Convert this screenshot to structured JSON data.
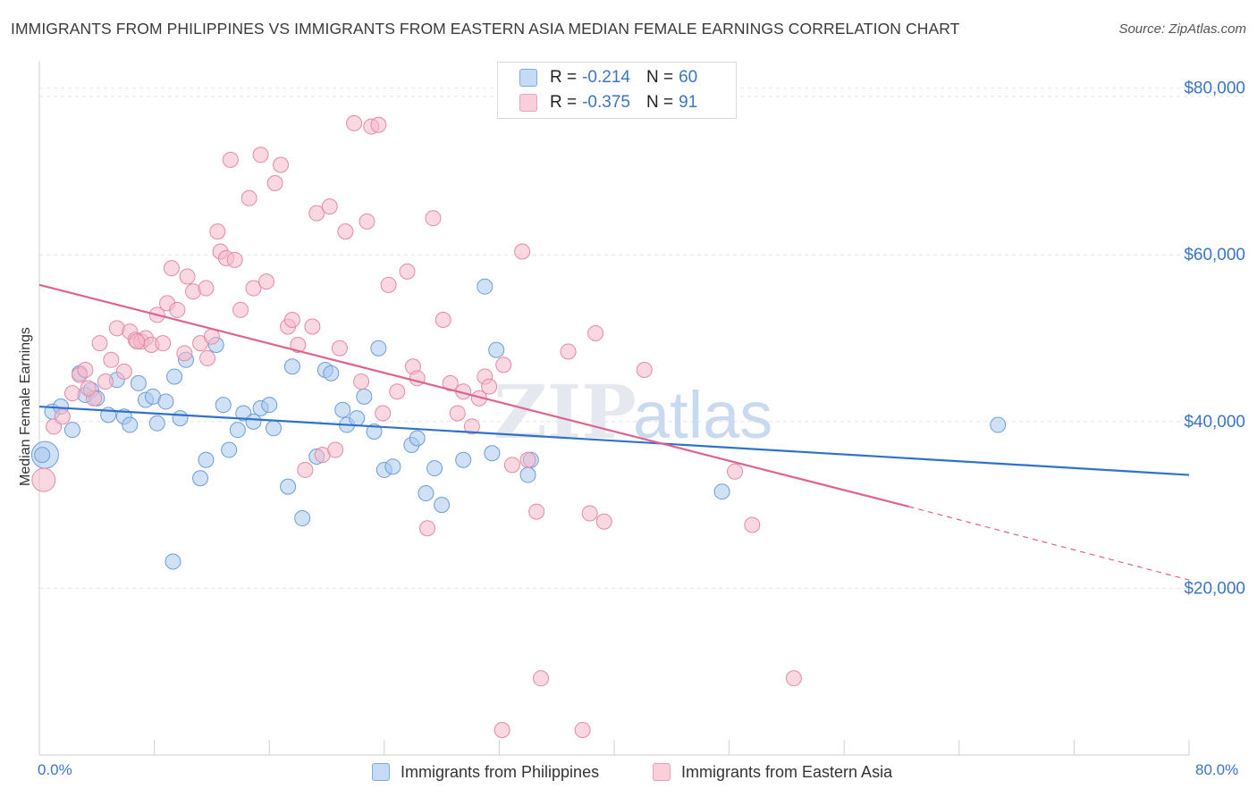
{
  "title": "IMMIGRANTS FROM PHILIPPINES VS IMMIGRANTS FROM EASTERN ASIA MEDIAN FEMALE EARNINGS CORRELATION CHART",
  "source": "Source: ZipAtlas.com",
  "watermark": {
    "zip": "ZIP",
    "atlas": "atlas"
  },
  "legend": {
    "r_label": "R =",
    "n_label": "N =",
    "rows": [
      {
        "r": "-0.214",
        "n": "60",
        "color": "#a9c8ef"
      },
      {
        "r": "-0.375",
        "n": "91",
        "color": "#f5b8cb"
      }
    ]
  },
  "chart_data": {
    "type": "scatter",
    "title": "IMMIGRANTS FROM PHILIPPINES VS IMMIGRANTS FROM EASTERN ASIA MEDIAN FEMALE EARNINGS CORRELATION CHART",
    "xlabel": "",
    "ylabel": "Median Female Earnings",
    "xlim": [
      0,
      80
    ],
    "ylim": [
      0,
      82000
    ],
    "x_tick_labels": [
      "0.0%",
      "80.0%"
    ],
    "y_ticks": [
      20000,
      40000,
      60000,
      80000
    ],
    "y_tick_labels": [
      "$20,000",
      "$40,000",
      "$60,000",
      "$80,000"
    ],
    "grid": true,
    "series": [
      {
        "name": "Immigrants from Philippines",
        "color": "#a9c8ef",
        "stroke": "#6a9ed8",
        "trend": {
          "x0": 0,
          "y0": 41800,
          "x1": 80,
          "y1": 33600,
          "color": "#2f72cc"
        },
        "points": [
          [
            0.4,
            36000
          ],
          [
            0.9,
            41200
          ],
          [
            1.5,
            41800
          ],
          [
            2.3,
            39000
          ],
          [
            2.8,
            45800
          ],
          [
            3.2,
            43200
          ],
          [
            3.6,
            43800
          ],
          [
            4.0,
            42800
          ],
          [
            4.8,
            40800
          ],
          [
            5.4,
            45000
          ],
          [
            5.9,
            40600
          ],
          [
            6.3,
            39600
          ],
          [
            6.9,
            44600
          ],
          [
            7.4,
            42600
          ],
          [
            7.9,
            43000
          ],
          [
            8.2,
            39800
          ],
          [
            8.8,
            42400
          ],
          [
            9.4,
            45400
          ],
          [
            9.8,
            40400
          ],
          [
            10.2,
            47400
          ],
          [
            11.2,
            33200
          ],
          [
            11.6,
            35400
          ],
          [
            12.3,
            49200
          ],
          [
            12.8,
            42000
          ],
          [
            13.2,
            36600
          ],
          [
            13.8,
            39000
          ],
          [
            14.2,
            41000
          ],
          [
            14.9,
            40000
          ],
          [
            15.4,
            41600
          ],
          [
            16.0,
            42000
          ],
          [
            16.3,
            39200
          ],
          [
            17.3,
            32200
          ],
          [
            17.6,
            46600
          ],
          [
            18.3,
            28400
          ],
          [
            19.3,
            35800
          ],
          [
            19.9,
            46200
          ],
          [
            20.3,
            45800
          ],
          [
            21.1,
            41400
          ],
          [
            21.4,
            39600
          ],
          [
            22.1,
            40400
          ],
          [
            22.6,
            43000
          ],
          [
            23.3,
            38800
          ],
          [
            23.6,
            48800
          ],
          [
            24.0,
            34200
          ],
          [
            24.6,
            34600
          ],
          [
            25.9,
            37200
          ],
          [
            26.3,
            38000
          ],
          [
            26.9,
            31400
          ],
          [
            27.5,
            34400
          ],
          [
            28.0,
            30000
          ],
          [
            29.5,
            35400
          ],
          [
            31.0,
            56200
          ],
          [
            31.5,
            36200
          ],
          [
            31.8,
            48600
          ],
          [
            34.0,
            33600
          ],
          [
            34.2,
            35400
          ],
          [
            9.3,
            23200
          ],
          [
            47.5,
            31600
          ],
          [
            66.7,
            39600
          ],
          [
            0.2,
            36000
          ]
        ],
        "sizes_note": "the point at x=0.4 is drawn larger"
      },
      {
        "name": "Immigrants from Eastern Asia",
        "color": "#f5b8cb",
        "stroke": "#e48aa6",
        "trend": {
          "x0": 0,
          "y0": 56400,
          "x1": 60.5,
          "y1": 29800,
          "dash_x1": 80,
          "dash_y1": 21000,
          "color": "#e0628f"
        },
        "points": [
          [
            0.3,
            33000
          ],
          [
            1.0,
            39400
          ],
          [
            1.6,
            40600
          ],
          [
            2.3,
            43400
          ],
          [
            2.8,
            45600
          ],
          [
            3.2,
            46200
          ],
          [
            3.8,
            42800
          ],
          [
            4.2,
            49400
          ],
          [
            4.6,
            44800
          ],
          [
            5.0,
            47400
          ],
          [
            5.4,
            51200
          ],
          [
            5.9,
            46000
          ],
          [
            6.3,
            50800
          ],
          [
            6.7,
            49800
          ],
          [
            7.1,
            49600
          ],
          [
            7.4,
            50000
          ],
          [
            7.8,
            49200
          ],
          [
            8.2,
            52800
          ],
          [
            8.6,
            49400
          ],
          [
            8.9,
            54200
          ],
          [
            9.2,
            58400
          ],
          [
            9.6,
            53400
          ],
          [
            10.1,
            48200
          ],
          [
            10.3,
            57400
          ],
          [
            10.7,
            55600
          ],
          [
            11.2,
            49400
          ],
          [
            11.6,
            56000
          ],
          [
            12.0,
            50200
          ],
          [
            12.4,
            62800
          ],
          [
            12.6,
            60400
          ],
          [
            13.0,
            59600
          ],
          [
            13.3,
            71400
          ],
          [
            13.6,
            59400
          ],
          [
            14.0,
            53400
          ],
          [
            14.6,
            66800
          ],
          [
            14.9,
            56000
          ],
          [
            15.4,
            72000
          ],
          [
            15.8,
            56800
          ],
          [
            16.4,
            68600
          ],
          [
            16.8,
            70800
          ],
          [
            17.3,
            51400
          ],
          [
            17.6,
            52200
          ],
          [
            18.0,
            49200
          ],
          [
            18.5,
            34200
          ],
          [
            19.0,
            51400
          ],
          [
            19.3,
            65000
          ],
          [
            19.7,
            36000
          ],
          [
            20.2,
            65800
          ],
          [
            20.6,
            36600
          ],
          [
            20.9,
            48800
          ],
          [
            21.3,
            62800
          ],
          [
            21.9,
            75800
          ],
          [
            22.4,
            44800
          ],
          [
            22.8,
            64000
          ],
          [
            23.1,
            75400
          ],
          [
            23.6,
            75600
          ],
          [
            23.9,
            41000
          ],
          [
            24.3,
            56400
          ],
          [
            24.9,
            43600
          ],
          [
            25.6,
            58000
          ],
          [
            26.0,
            46600
          ],
          [
            26.3,
            45200
          ],
          [
            27.0,
            27200
          ],
          [
            27.4,
            64400
          ],
          [
            28.1,
            52200
          ],
          [
            28.6,
            44600
          ],
          [
            29.1,
            41000
          ],
          [
            29.5,
            43600
          ],
          [
            30.1,
            39400
          ],
          [
            30.6,
            42800
          ],
          [
            31.0,
            45400
          ],
          [
            31.3,
            44200
          ],
          [
            32.3,
            46800
          ],
          [
            32.9,
            34800
          ],
          [
            33.6,
            60400
          ],
          [
            34.0,
            35400
          ],
          [
            34.6,
            29200
          ],
          [
            36.8,
            48400
          ],
          [
            38.3,
            29000
          ],
          [
            38.7,
            50600
          ],
          [
            39.3,
            28000
          ],
          [
            42.1,
            46200
          ],
          [
            48.4,
            34000
          ],
          [
            49.6,
            27600
          ],
          [
            34.9,
            9200
          ],
          [
            52.5,
            9200
          ],
          [
            32.2,
            3000
          ],
          [
            37.8,
            3000
          ],
          [
            11.7,
            47600
          ],
          [
            6.8,
            49600
          ],
          [
            3.4,
            44000
          ]
        ]
      }
    ]
  },
  "bottom_legend": [
    {
      "label": "Immigrants from Philippines",
      "color": "#a9c8ef"
    },
    {
      "label": "Immigrants from Eastern Asia",
      "color": "#f5b8cb"
    }
  ]
}
